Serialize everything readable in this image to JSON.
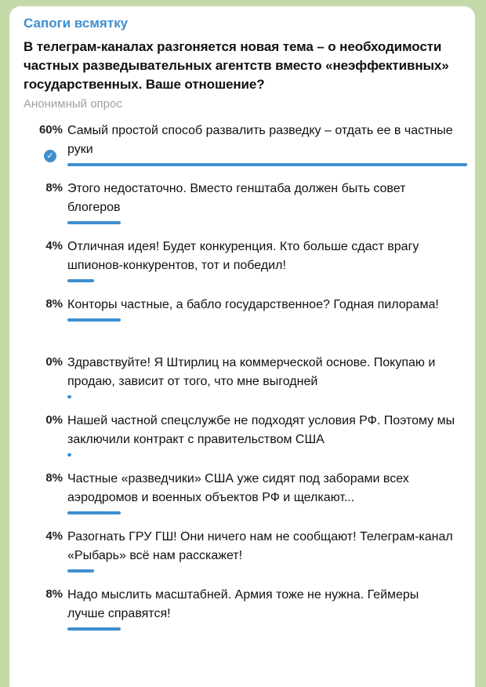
{
  "channel": "Сапоги всмятку",
  "question": "В телеграм-каналах разгоняется новая тема – о необходимости частных разведывательных агентств вместо «неэффективных» государственных. Ваше отношение?",
  "poll_type": "Анонимный опрос",
  "accent_color": "#3f8fcf",
  "options": [
    {
      "percent": "60%",
      "value": 60,
      "text": "Самый простой способ развалить разведку – отдать ее в частные руки",
      "chosen": true
    },
    {
      "percent": "8%",
      "value": 8,
      "text": "Этого недостаточно. Вместо генштаба должен быть совет блогеров"
    },
    {
      "percent": "4%",
      "value": 4,
      "text": "Отличная идея! Будет конкуренция. Кто больше сдаст врагу шпионов-конкурентов, тот и победил!"
    },
    {
      "percent": "8%",
      "value": 8,
      "text": "Конторы частные, а бабло государственное? Годная пилорама!"
    },
    {
      "percent": "0%",
      "value": 0,
      "text": "Здравствуйте! Я Штирлиц на коммерческой основе. Покупаю и продаю, зависит от того, что мне выгодней"
    },
    {
      "percent": "0%",
      "value": 0,
      "text": "Нашей частной спецслужбе не подходят условия РФ. Поэтому мы заключили контракт с правительством США"
    },
    {
      "percent": "8%",
      "value": 8,
      "text": "Частные «разведчики» США уже сидят под заборами всех аэродромов и военных объектов РФ и щелкают..."
    },
    {
      "percent": "4%",
      "value": 4,
      "text": "Разогнать ГРУ ГШ! Они ничего нам не сообщают! Телеграм-канал «Рыбарь» всё нам расскажет!"
    },
    {
      "percent": "8%",
      "value": 8,
      "text": "Надо мыслить масштабней. Армия тоже не нужна. Геймеры лучше справятся!"
    }
  ]
}
